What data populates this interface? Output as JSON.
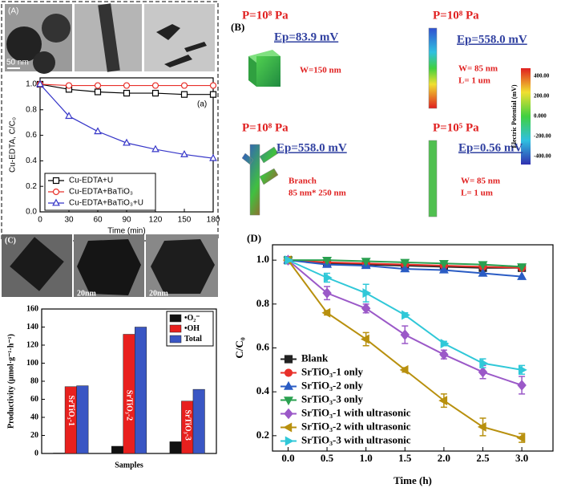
{
  "chart_data": [
    {
      "type": "line",
      "panel_label": "(A)",
      "annotation": "(a)",
      "scale_label": "50 nm",
      "x_label": "Time (min)",
      "y_label": "Cu-EDTA, C/C₀",
      "x": [
        0,
        30,
        60,
        90,
        120,
        150,
        180
      ],
      "series": [
        {
          "name": "Cu-EDTA+U",
          "color": "#000000",
          "marker": "square",
          "values": [
            1.0,
            0.96,
            0.94,
            0.93,
            0.93,
            0.92,
            0.92
          ]
        },
        {
          "name": "Cu-EDTA+BaTiO₃",
          "color": "#e8302a",
          "marker": "circle",
          "values": [
            1.0,
            0.99,
            0.99,
            0.99,
            0.99,
            0.99,
            0.99
          ]
        },
        {
          "name": "Cu-EDTA+BaTiO₃+U",
          "color": "#3636c8",
          "marker": "triangle",
          "values": [
            1.0,
            0.75,
            0.63,
            0.54,
            0.49,
            0.45,
            0.42
          ]
        }
      ],
      "xlim": [
        0,
        180
      ],
      "xticks": [
        0,
        30,
        60,
        90,
        120,
        150,
        180
      ],
      "ylim": [
        0,
        1.05
      ],
      "yticks": [
        {
          "value": 0,
          "label": "0.0"
        },
        0.2,
        0.4,
        0.6,
        0.8,
        {
          "value": 1,
          "label": "1.0"
        }
      ],
      "legend": "lower left",
      "markers_open": true
    },
    {
      "type": "bar",
      "panel_label": "(C)",
      "scale_labels": [
        "20nm",
        "20nm"
      ],
      "x_label": "Samples",
      "y_label": "Productivity (μmol·g⁻¹·h⁻¹)",
      "categories": [
        "SrTiO₃-1",
        "SrTiO₃-2",
        "SrTiO₃-3"
      ],
      "series": [
        {
          "name": "•O₂⁻",
          "color": "#111111",
          "values": [
            0.5,
            8,
            13
          ]
        },
        {
          "name": "•OH",
          "color": "#e8201e",
          "values": [
            74,
            132,
            58
          ]
        },
        {
          "name": "Total",
          "color": "#3a56c4",
          "values": [
            75,
            140,
            71
          ]
        }
      ],
      "ylim": [
        0,
        160
      ],
      "yticks": [
        0,
        20,
        40,
        60,
        80,
        100,
        120,
        140,
        160
      ],
      "legend": "upper right"
    },
    {
      "type": "line",
      "panel_label": "(D)",
      "x_label": "Time (h)",
      "y_label": "C/C₀",
      "x": [
        0,
        0.5,
        1,
        1.5,
        2,
        2.5,
        3
      ],
      "series": [
        {
          "name": "Blank",
          "color": "#222222",
          "marker": "square",
          "values": [
            1.0,
            0.985,
            0.98,
            0.975,
            0.97,
            0.965,
            0.965
          ]
        },
        {
          "name": "SrTiO₃-1 only",
          "color": "#e8302a",
          "marker": "circle",
          "values": [
            1.0,
            0.99,
            0.985,
            0.98,
            0.975,
            0.97,
            0.965
          ]
        },
        {
          "name": "SrTiO₃-2 only",
          "color": "#2a5cc4",
          "marker": "triangle",
          "values": [
            1.0,
            0.98,
            0.975,
            0.96,
            0.955,
            0.94,
            0.925
          ]
        },
        {
          "name": "SrTiO₃-3 only",
          "color": "#2aa050",
          "marker": "triangle-down",
          "values": [
            1.0,
            1.0,
            0.995,
            0.99,
            0.985,
            0.98,
            0.97
          ]
        },
        {
          "name": "SrTiO₃-1 with ultrasonic",
          "color": "#9b59c8",
          "marker": "diamond",
          "values": [
            1.0,
            0.85,
            0.78,
            0.66,
            0.57,
            0.49,
            0.43
          ],
          "errors": [
            0,
            0.03,
            0.02,
            0.04,
            0.02,
            0.03,
            0.04
          ]
        },
        {
          "name": "SrTiO₃-2 with ultrasonic",
          "color": "#b8900e",
          "marker": "triangle-left",
          "values": [
            1.0,
            0.76,
            0.64,
            0.5,
            0.36,
            0.24,
            0.19
          ],
          "errors": [
            0,
            0.01,
            0.03,
            0.01,
            0.03,
            0.04,
            0.02
          ]
        },
        {
          "name": "SrTiO₃-3 with ultrasonic",
          "color": "#30c8d8",
          "marker": "triangle-right",
          "values": [
            1.0,
            0.92,
            0.85,
            0.75,
            0.62,
            0.53,
            0.5
          ],
          "errors": [
            0,
            0.02,
            0.04,
            0.01,
            0.01,
            0.02,
            0.02
          ]
        }
      ],
      "xlim": [
        -0.2,
        3.4
      ],
      "xticks": [
        {
          "value": 0,
          "label": "0.0"
        },
        0.5,
        {
          "value": 1,
          "label": "1.0"
        },
        1.5,
        {
          "value": 2,
          "label": "2.0"
        },
        2.5,
        {
          "value": 3,
          "label": "3.0"
        }
      ],
      "ylim": [
        0.13,
        1.07
      ],
      "yticks": [
        0.2,
        0.4,
        0.6,
        0.8,
        {
          "value": 1,
          "label": "1.0"
        }
      ],
      "legend": "lower left"
    }
  ],
  "panel_b": {
    "label": "(B)",
    "colorbar_label": "Electric Potential (mV)",
    "colorbar_ticks": [
      "400.00",
      "200.00",
      "0.000",
      "-200.00",
      "-400.00"
    ],
    "cases": [
      {
        "pressure": "P=10⁸ Pa",
        "potential": "Ep=83.9 mV",
        "dims": [
          "W=150 nm"
        ]
      },
      {
        "pressure": "P=10⁸ Pa",
        "potential": "Ep=558.0 mV",
        "dims": [
          "W= 85 nm",
          "L= 1 um"
        ]
      },
      {
        "pressure": "P=10⁸ Pa",
        "potential": "Ep=558.0 mV",
        "dims": [
          "Branch",
          "85 nm* 250 nm"
        ]
      },
      {
        "pressure": "P=10⁵ Pa",
        "potential": "Ep=0.56 mV",
        "dims": [
          "W= 85 nm",
          "L= 1 um"
        ]
      }
    ]
  }
}
